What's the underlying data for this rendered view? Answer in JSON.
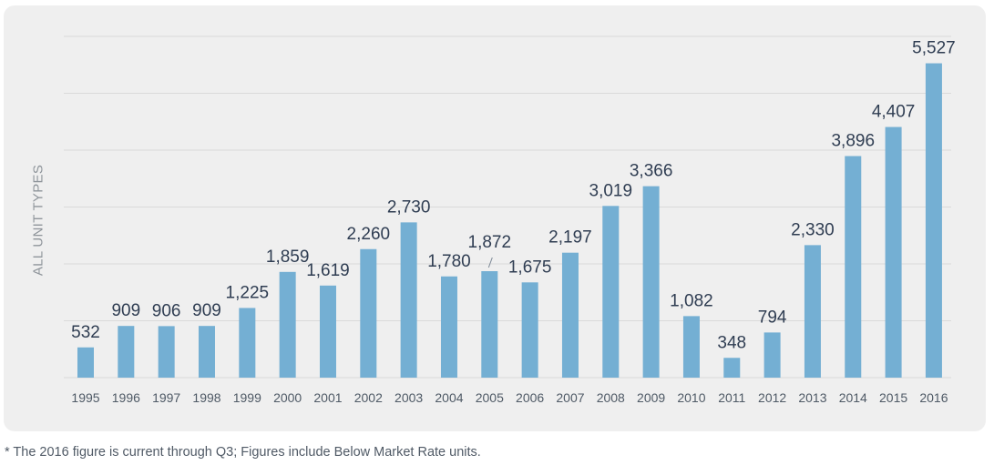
{
  "chart_data": {
    "type": "bar",
    "ylabel": "ALL UNIT TYPES",
    "xlabel": "",
    "categories": [
      "1995",
      "1996",
      "1997",
      "1998",
      "1999",
      "2000",
      "2001",
      "2002",
      "2003",
      "2004",
      "2005",
      "2006",
      "2007",
      "2008",
      "2009",
      "2010",
      "2011",
      "2012",
      "2013",
      "2014",
      "2015",
      "2016"
    ],
    "values": [
      532,
      909,
      906,
      909,
      1225,
      1859,
      1619,
      2260,
      2730,
      1780,
      1872,
      1675,
      2197,
      3019,
      3366,
      1082,
      348,
      794,
      2330,
      3896,
      4407,
      5527
    ],
    "value_labels": [
      "532",
      "909",
      "906",
      "909",
      "1,225",
      "1,859",
      "1,619",
      "2,260",
      "2,730",
      "1,780",
      "1,872",
      "1,675",
      "2,197",
      "3,019",
      "3,366",
      "1,082",
      "348",
      "794",
      "2,330",
      "3,896",
      "4,407",
      "5,527"
    ],
    "ylim": [
      0,
      6000
    ],
    "grid": true,
    "bar_color": "#74afd3",
    "grid_color": "#dadada",
    "label_color": "#2f3d52",
    "legend": "none"
  },
  "footnote": "* The 2016 figure is current through Q3; Figures include Below Market Rate units."
}
